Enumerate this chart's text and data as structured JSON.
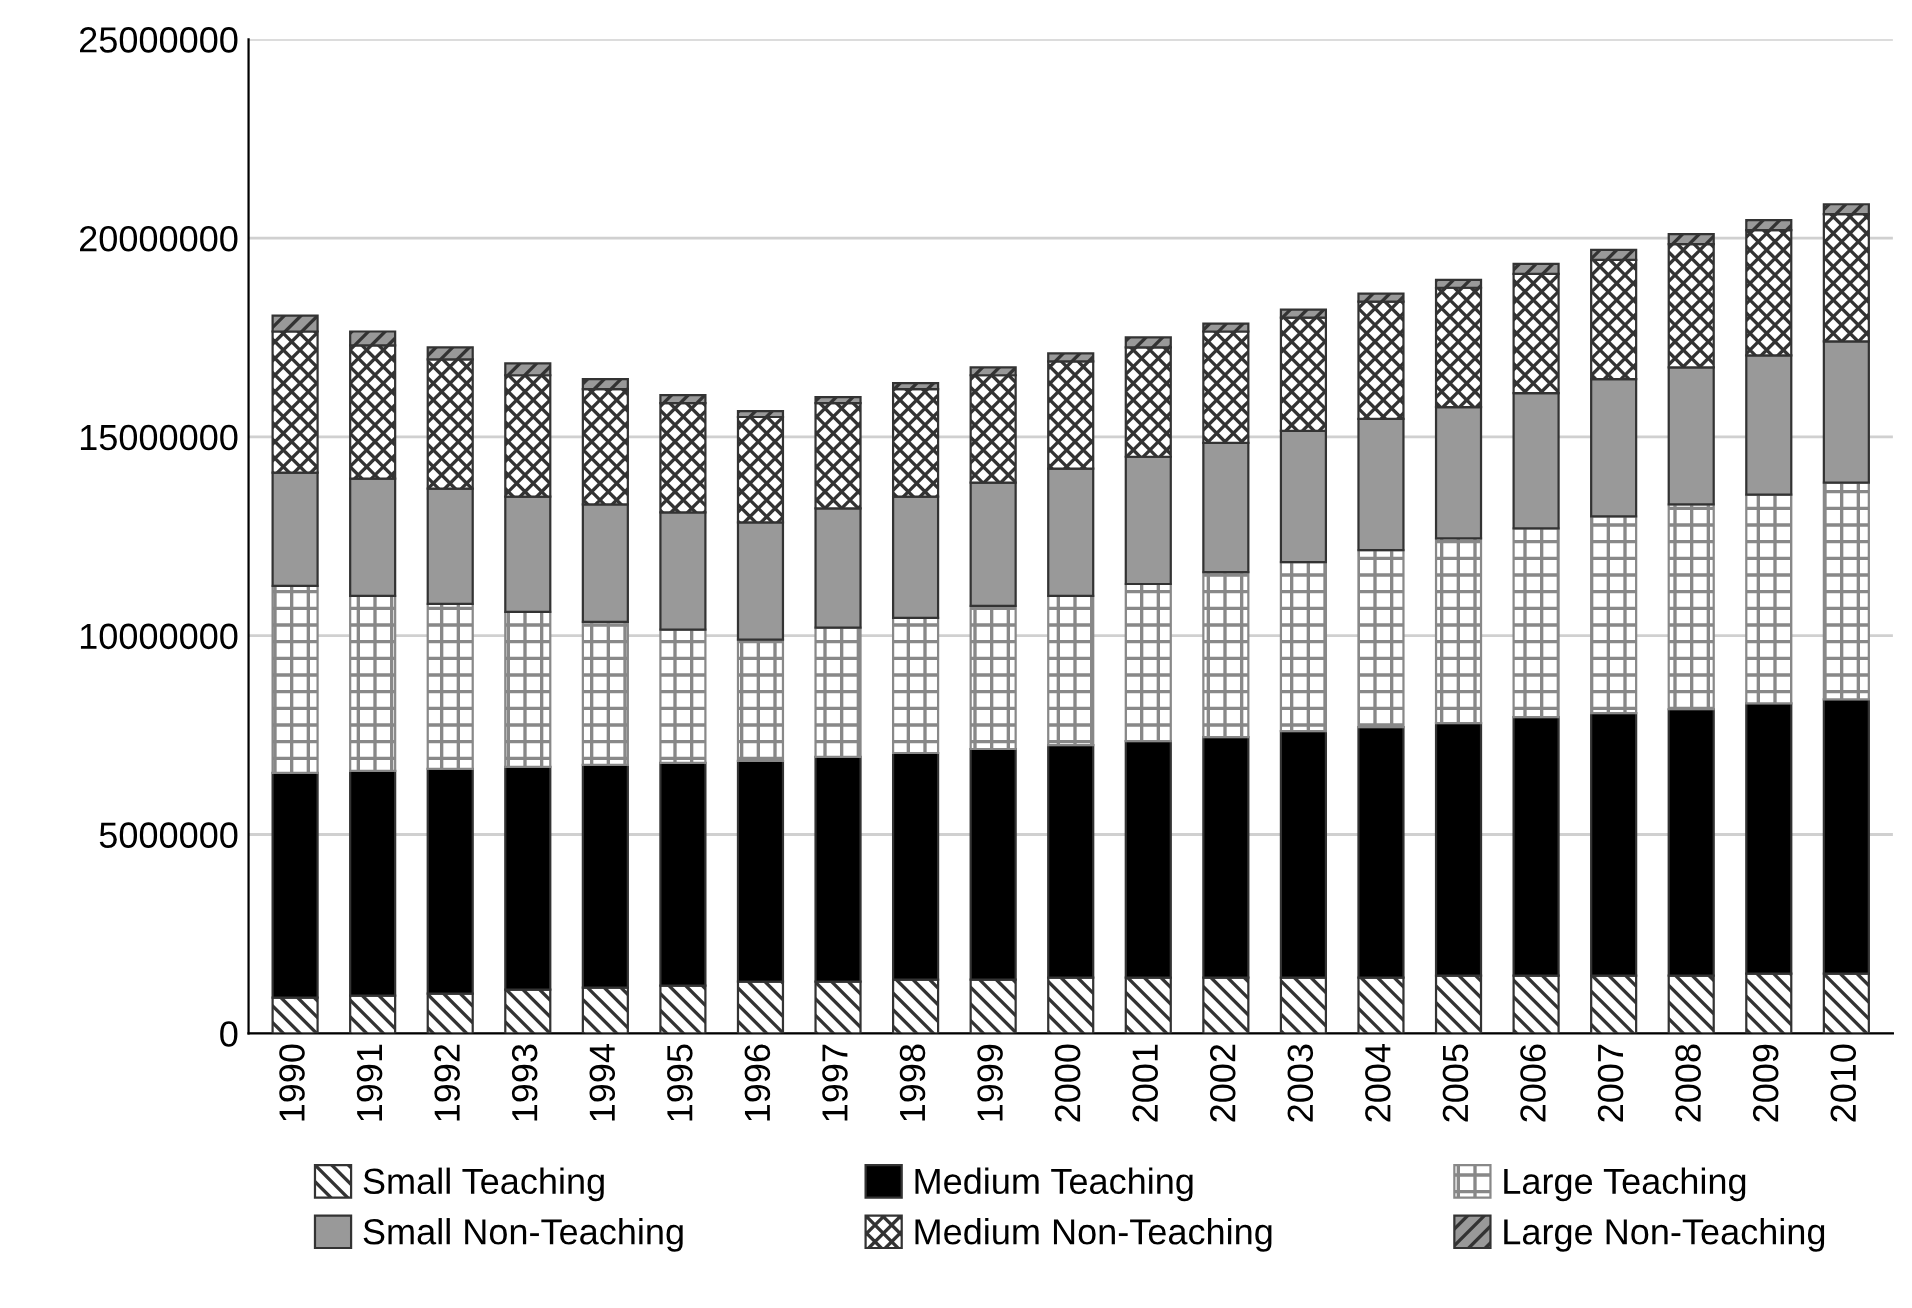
{
  "chart_data": {
    "type": "bar",
    "stacked": true,
    "categories": [
      "1990",
      "1991",
      "1992",
      "1993",
      "1994",
      "1995",
      "1996",
      "1997",
      "1998",
      "1999",
      "2000",
      "2001",
      "2002",
      "2003",
      "2004",
      "2005",
      "2006",
      "2007",
      "2008",
      "2009",
      "2010"
    ],
    "series": [
      {
        "name": "Small Teaching",
        "color": "#333333",
        "values": [
          900000,
          950000,
          1000000,
          1100000,
          1150000,
          1200000,
          1300000,
          1300000,
          1350000,
          1350000,
          1400000,
          1400000,
          1400000,
          1400000,
          1400000,
          1450000,
          1450000,
          1450000,
          1450000,
          1500000,
          1500000
        ]
      },
      {
        "name": "Medium Teaching",
        "color": "#000000",
        "values": [
          5650000,
          5650000,
          5650000,
          5600000,
          5600000,
          5600000,
          5550000,
          5650000,
          5700000,
          5800000,
          5850000,
          5950000,
          6050000,
          6200000,
          6300000,
          6350000,
          6500000,
          6600000,
          6700000,
          6800000,
          6900000
        ]
      },
      {
        "name": "Large Teaching",
        "color": "#888888",
        "values": [
          4700000,
          4400000,
          4150000,
          3900000,
          3600000,
          3350000,
          3050000,
          3250000,
          3400000,
          3600000,
          3750000,
          3950000,
          4150000,
          4250000,
          4450000,
          4650000,
          4750000,
          4950000,
          5150000,
          5250000,
          5450000
        ]
      },
      {
        "name": "Small Non-Teaching",
        "color": "#999999",
        "values": [
          2850000,
          2950000,
          2900000,
          2900000,
          2950000,
          2950000,
          2950000,
          3000000,
          3050000,
          3100000,
          3200000,
          3200000,
          3250000,
          3300000,
          3300000,
          3300000,
          3400000,
          3450000,
          3450000,
          3500000,
          3550000
        ]
      },
      {
        "name": "Medium Non-Teaching",
        "color": "#333333",
        "values": [
          3550000,
          3350000,
          3250000,
          3050000,
          2900000,
          2750000,
          2650000,
          2650000,
          2700000,
          2700000,
          2700000,
          2750000,
          2800000,
          2850000,
          2950000,
          3000000,
          3000000,
          3000000,
          3100000,
          3150000,
          3200000
        ]
      },
      {
        "name": "Large Non-Teaching",
        "color": "#333333",
        "values": [
          400000,
          350000,
          300000,
          300000,
          250000,
          200000,
          150000,
          150000,
          150000,
          200000,
          200000,
          250000,
          200000,
          200000,
          200000,
          200000,
          250000,
          250000,
          250000,
          250000,
          250000
        ]
      }
    ],
    "ylim": [
      0,
      25000000
    ],
    "yticks": [
      0,
      5000000,
      10000000,
      15000000,
      20000000,
      25000000
    ],
    "grid": "y",
    "legend": "bottom"
  }
}
